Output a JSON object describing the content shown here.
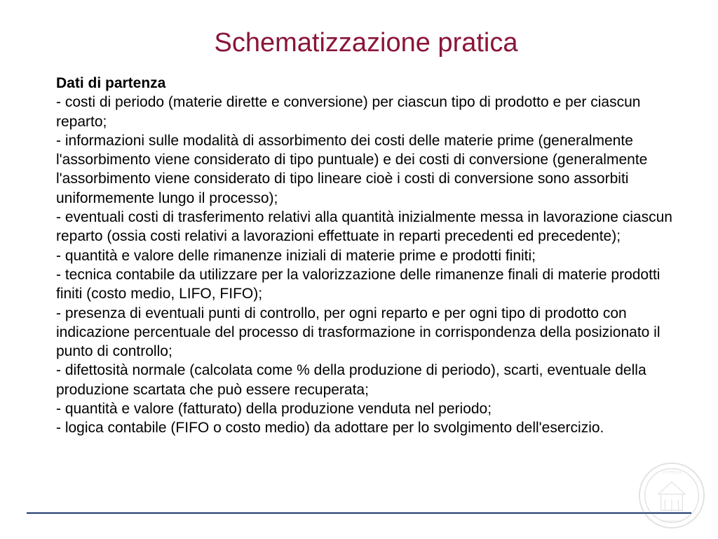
{
  "colors": {
    "title": "#8a1538",
    "text": "#000000",
    "line": "#1f3a6e",
    "seal": "#7a7a7a"
  },
  "title": "Schematizzazione pratica",
  "subtitle": "Dati di partenza",
  "body": "- costi di periodo (materie dirette e conversione) per ciascun tipo di prodotto e per ciascun reparto;\n- informazioni sulle modalità di assorbimento dei costi delle materie prime (generalmente l'assorbimento viene considerato di tipo puntuale) e dei costi di conversione (generalmente l'assorbimento viene considerato di tipo lineare cioè i costi di conversione sono assorbiti uniformemente lungo il processo);\n- eventuali costi di trasferimento relativi alla quantità inizialmente messa in lavorazione ciascun reparto (ossia costi relativi a lavorazioni effettuate in reparti precedenti ed precedente);\n- quantità e valore delle rimanenze iniziali di materie prime e prodotti finiti;\n- tecnica contabile da utilizzare per la valorizzazione delle rimanenze finali di materie prodotti finiti (costo medio, LIFO, FIFO);\n- presenza di eventuali punti di controllo, per ogni reparto e per ogni tipo di prodotto con indicazione percentuale del processo di trasformazione in corrispondenza della posizionato il punto di controllo;\n- difettosità normale (calcolata come % della produzione di periodo), scarti, eventuale della produzione scartata che può essere recuperata;\n- quantità e valore (fatturato) della produzione venduta nel periodo;\n- logica contabile (FIFO o costo medio) da adottare per lo svolgimento dell'esercizio."
}
